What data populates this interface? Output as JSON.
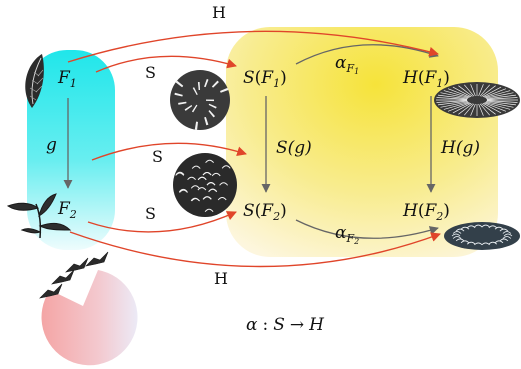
{
  "diagram": {
    "left_column": {
      "top_node": {
        "var": "F",
        "sub": "1"
      },
      "bottom_node": {
        "var": "F",
        "sub": "2"
      },
      "morphism": "g"
    },
    "middle_column": {
      "top_node": {
        "func": "S",
        "var": "F",
        "sub": "1"
      },
      "bottom_node": {
        "func": "S",
        "var": "F",
        "sub": "2"
      },
      "morphism": "S(g)"
    },
    "right_column": {
      "top_node": {
        "func": "H",
        "var": "F",
        "sub": "1"
      },
      "bottom_node": {
        "func": "H",
        "var": "F",
        "sub": "2"
      },
      "morphism": "H(g)"
    },
    "arrow_labels": {
      "top_h": "H",
      "bottom_h": "H",
      "s_top": "S",
      "s_mid": "S",
      "s_bottom": "S"
    },
    "components": {
      "alpha_top": {
        "sym": "α",
        "var": "F",
        "sub": "1"
      },
      "alpha_bottom": {
        "sym": "α",
        "var": "F",
        "sub": "2"
      }
    },
    "caption": {
      "sym": "α",
      "colon": ":",
      "domain": "S",
      "arrow": "→",
      "codomain": "H"
    },
    "colors": {
      "functor_arrow": "#e0452a",
      "morphism_arrow": "#666666",
      "category_c": "#22e3e8",
      "category_d": "#f6e33a",
      "pie_pink": "#f4a9a9"
    }
  }
}
